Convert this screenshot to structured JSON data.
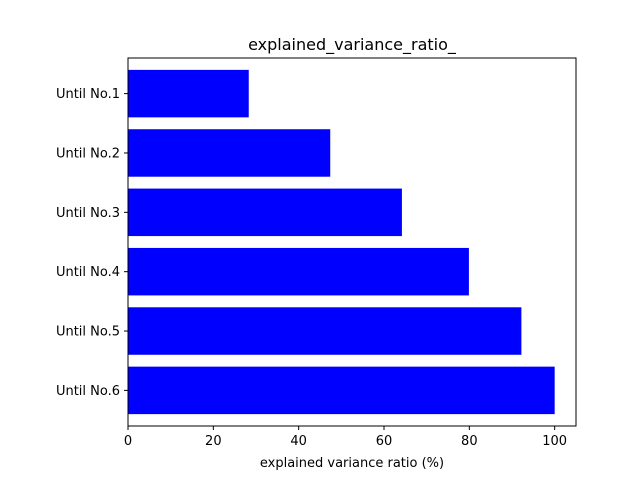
{
  "chart_data": {
    "type": "bar",
    "orientation": "horizontal",
    "title": "explained_variance_ratio_",
    "xlabel": "explained variance ratio (%)",
    "ylabel": "",
    "categories": [
      "Until No.1",
      "Until No.2",
      "Until No.3",
      "Until No.4",
      "Until No.5",
      "Until No.6"
    ],
    "values": [
      28.3,
      47.4,
      64.2,
      79.9,
      92.2,
      100.0
    ],
    "xlim": [
      0,
      105
    ],
    "xticks": [
      0,
      20,
      40,
      60,
      80,
      100
    ],
    "xtick_labels": [
      "0",
      "20",
      "40",
      "60",
      "80",
      "100"
    ],
    "y_inverted": true,
    "grid": false,
    "legend": "none",
    "bar_color": "#0000ff"
  }
}
